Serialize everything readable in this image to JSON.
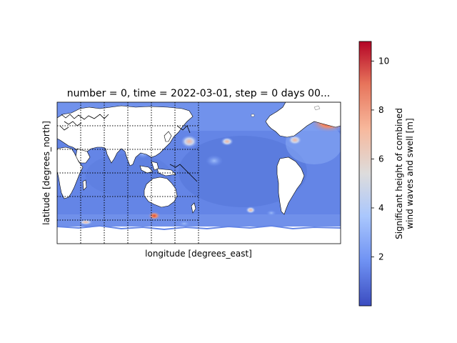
{
  "figure": {
    "title": "number = 0, time = 2022-03-01, step = 0 days 00...",
    "xlabel": "longitude [degrees_east]",
    "ylabel": "latitude [degrees_north]"
  },
  "colorbar": {
    "label_line1": "Significant height of combined",
    "label_line2": "wind waves and swell [m]",
    "ticks": [
      "2",
      "4",
      "6",
      "8",
      "10"
    ],
    "tick_values": [
      2,
      4,
      6,
      8,
      10
    ],
    "range": [
      0,
      10.8
    ],
    "colormap": "coolwarm",
    "colors": [
      "#3b4cc0",
      "#6f92f3",
      "#aac7fd",
      "#dddcdc",
      "#f7b89c",
      "#e7745b",
      "#b40426"
    ]
  },
  "map": {
    "projection": "PlateCarree",
    "land_color": "#ffffff",
    "gridlines": "dotted",
    "coastlines": true
  }
}
